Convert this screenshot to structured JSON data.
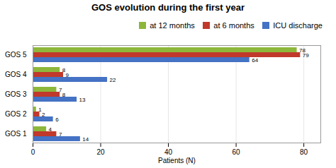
{
  "chart_data": {
    "type": "bar",
    "orientation": "horizontal",
    "title": "GOS evolution during the first year",
    "xlabel": "Patients (N)",
    "categories": [
      "GOS 1",
      "GOS 2",
      "GOS 3",
      "GOS 4",
      "GOS 5"
    ],
    "series": [
      {
        "name": "at 12 months",
        "color": "#8db73b",
        "values": [
          4,
          1,
          7,
          8,
          78
        ]
      },
      {
        "name": "at 6 months",
        "color": "#c0392b",
        "values": [
          7,
          2,
          8,
          9,
          79
        ]
      },
      {
        "name": "ICU discharge",
        "color": "#4472c4",
        "values": [
          14,
          6,
          13,
          22,
          64
        ]
      }
    ],
    "xlim": [
      0,
      85
    ],
    "xticks": [
      0,
      20,
      40,
      60,
      80
    ],
    "grid": true,
    "legend": "upper right",
    "data_labels": true
  }
}
